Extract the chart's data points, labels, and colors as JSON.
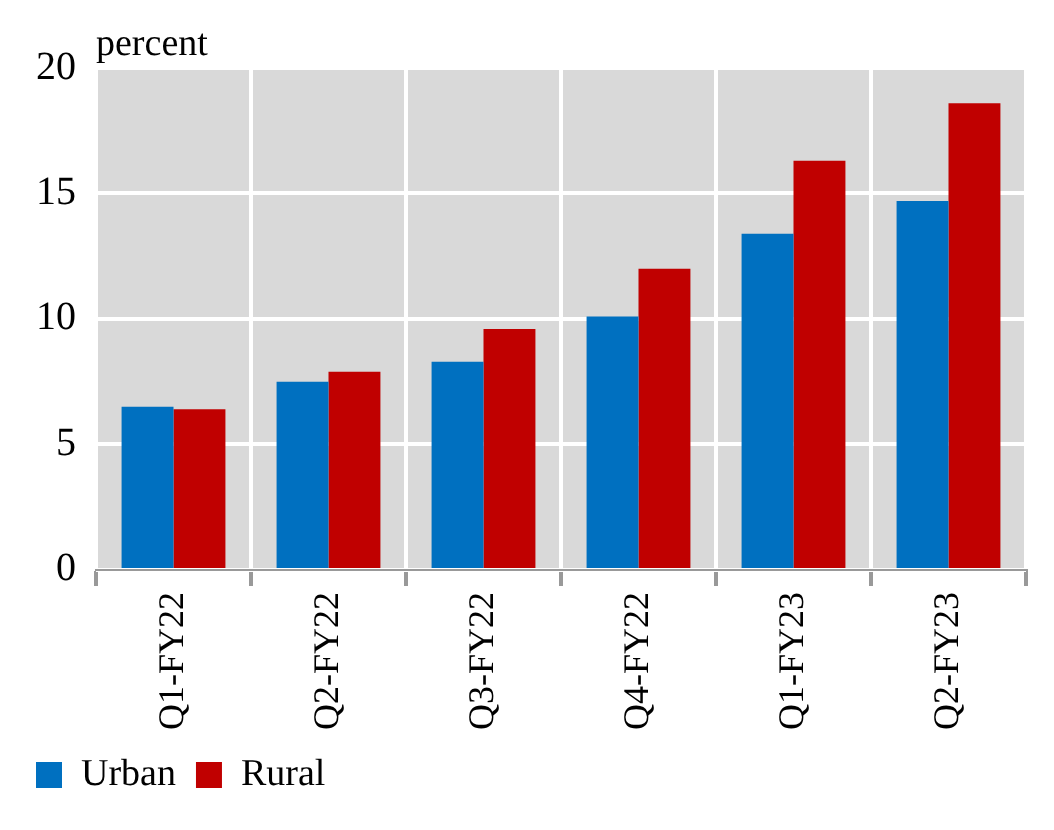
{
  "chart_data": {
    "type": "bar",
    "ylabel": "percent",
    "categories": [
      "Q1-FY22",
      "Q2-FY22",
      "Q3-FY22",
      "Q4-FY22",
      "Q1-FY23",
      "Q2-FY23"
    ],
    "series": [
      {
        "name": "Urban",
        "color": "#0070c0",
        "values": [
          6.5,
          7.5,
          8.3,
          10.1,
          13.4,
          14.7
        ]
      },
      {
        "name": "Rural",
        "color": "#c00000",
        "values": [
          6.4,
          7.9,
          9.6,
          12.0,
          16.3,
          18.6
        ]
      }
    ],
    "ylim": [
      0,
      20
    ],
    "yticks": [
      0,
      5,
      10,
      15,
      20
    ],
    "grid": true,
    "legend": "bottom left"
  }
}
